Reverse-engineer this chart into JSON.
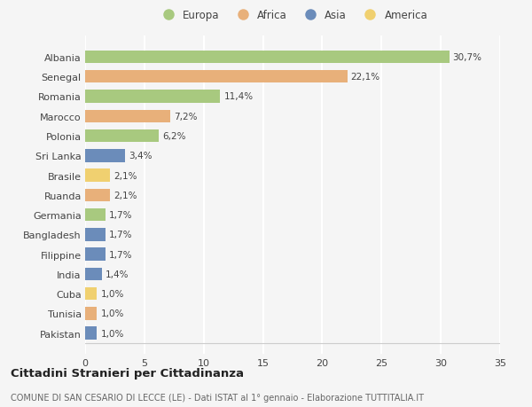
{
  "countries": [
    "Albania",
    "Senegal",
    "Romania",
    "Marocco",
    "Polonia",
    "Sri Lanka",
    "Brasile",
    "Ruanda",
    "Germania",
    "Bangladesh",
    "Filippine",
    "India",
    "Cuba",
    "Tunisia",
    "Pakistan"
  ],
  "values": [
    30.7,
    22.1,
    11.4,
    7.2,
    6.2,
    3.4,
    2.1,
    2.1,
    1.7,
    1.7,
    1.7,
    1.4,
    1.0,
    1.0,
    1.0
  ],
  "labels": [
    "30,7%",
    "22,1%",
    "11,4%",
    "7,2%",
    "6,2%",
    "3,4%",
    "2,1%",
    "2,1%",
    "1,7%",
    "1,7%",
    "1,7%",
    "1,4%",
    "1,0%",
    "1,0%",
    "1,0%"
  ],
  "continents": [
    "Europa",
    "Africa",
    "Europa",
    "Africa",
    "Europa",
    "Asia",
    "America",
    "Africa",
    "Europa",
    "Asia",
    "Asia",
    "Asia",
    "America",
    "Africa",
    "Asia"
  ],
  "colors": {
    "Europa": "#a8c97f",
    "Africa": "#e8b07a",
    "Asia": "#6b8cba",
    "America": "#f0d070"
  },
  "legend_order": [
    "Europa",
    "Africa",
    "Asia",
    "America"
  ],
  "legend_colors": [
    "#a8c97f",
    "#e8b07a",
    "#6b8cba",
    "#f0d070"
  ],
  "title": "Cittadini Stranieri per Cittadinanza",
  "subtitle": "COMUNE DI SAN CESARIO DI LECCE (LE) - Dati ISTAT al 1° gennaio - Elaborazione TUTTITALIA.IT",
  "xlim": [
    0,
    35
  ],
  "xticks": [
    0,
    5,
    10,
    15,
    20,
    25,
    30,
    35
  ],
  "background_color": "#f5f5f5",
  "grid_color": "#ffffff"
}
